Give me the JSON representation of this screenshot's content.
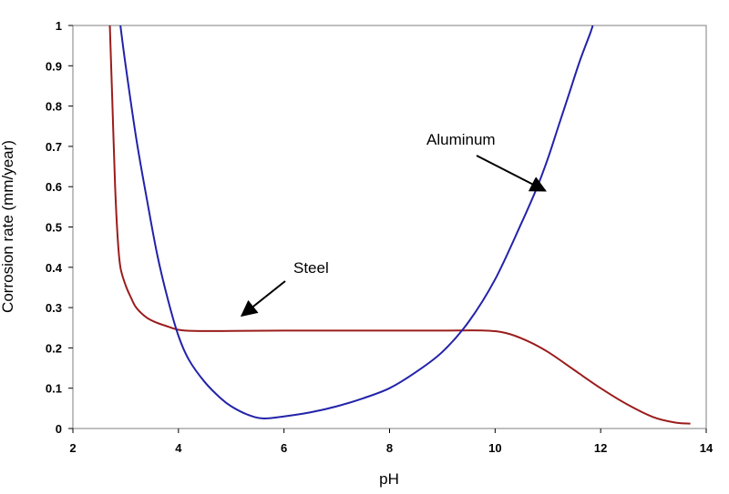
{
  "chart_data": {
    "type": "line",
    "title": "",
    "xlabel": "pH",
    "ylabel": "Corrosion rate (mm/year)",
    "xlim": [
      2,
      14
    ],
    "ylim": [
      0,
      1
    ],
    "x_ticks": [
      "2",
      "4",
      "6",
      "8",
      "10",
      "12",
      "14"
    ],
    "y_ticks": [
      "0",
      "0.1",
      "0.2",
      "0.3",
      "0.4",
      "0.5",
      "0.6",
      "0.7",
      "0.8",
      "0.9",
      "1"
    ],
    "grid": false,
    "legend": "none",
    "series": [
      {
        "name": "Steel",
        "color": "#9b1c1c",
        "x": [
          2.7,
          2.75,
          2.8,
          2.85,
          2.9,
          3.0,
          3.1,
          3.2,
          3.4,
          3.6,
          3.8,
          4.0,
          4.3,
          5.0,
          6.0,
          7.0,
          8.0,
          9.0,
          9.8,
          10.2,
          10.6,
          11.0,
          11.5,
          12.0,
          12.5,
          13.0,
          13.4,
          13.7
        ],
        "y": [
          1.0,
          0.8,
          0.6,
          0.47,
          0.4,
          0.355,
          0.325,
          0.3,
          0.275,
          0.262,
          0.253,
          0.245,
          0.242,
          0.242,
          0.243,
          0.243,
          0.243,
          0.243,
          0.243,
          0.237,
          0.218,
          0.19,
          0.145,
          0.1,
          0.06,
          0.028,
          0.015,
          0.012
        ]
      },
      {
        "name": "Aluminum",
        "color": "#2222aa",
        "x": [
          2.9,
          3.0,
          3.2,
          3.4,
          3.6,
          3.8,
          4.0,
          4.2,
          4.5,
          4.8,
          5.0,
          5.3,
          5.6,
          6.0,
          6.5,
          7.0,
          7.5,
          8.0,
          8.5,
          9.0,
          9.5,
          10.0,
          10.5,
          10.8,
          11.0,
          11.2,
          11.4,
          11.6,
          11.8,
          11.85
        ],
        "y": [
          1.0,
          0.9,
          0.72,
          0.57,
          0.43,
          0.32,
          0.23,
          0.17,
          0.115,
          0.075,
          0.055,
          0.035,
          0.025,
          0.03,
          0.04,
          0.055,
          0.075,
          0.1,
          0.14,
          0.19,
          0.265,
          0.37,
          0.51,
          0.6,
          0.67,
          0.75,
          0.83,
          0.91,
          0.98,
          1.0
        ]
      }
    ],
    "annotations": [
      {
        "text": "Aluminum",
        "arrow_to": [
          10.95,
          0.59
        ]
      },
      {
        "text": "Steel",
        "arrow_to": [
          5.2,
          0.28
        ]
      }
    ]
  }
}
